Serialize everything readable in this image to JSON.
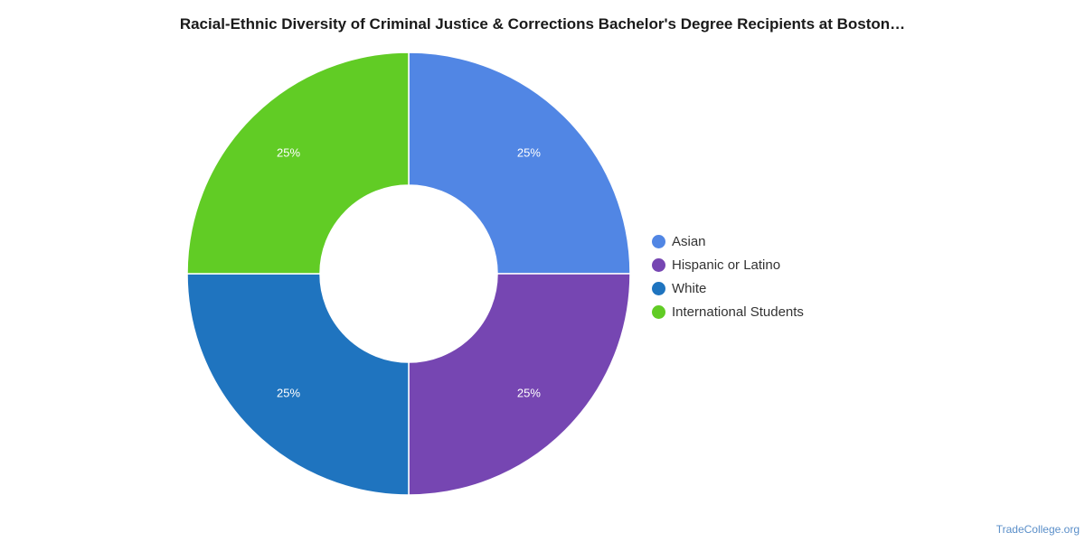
{
  "chart_data": {
    "type": "pie",
    "variant": "donut",
    "title": "Racial-Ethnic Diversity of Criminal Justice & Corrections Bachelor's Degree Recipients at Boston…",
    "categories": [
      "Asian",
      "Hispanic or Latino",
      "White",
      "International Students"
    ],
    "values": [
      25,
      25,
      25,
      25
    ],
    "data_labels": [
      "25%",
      "25%",
      "25%",
      "25%"
    ],
    "colors": [
      "#5186e4",
      "#7646b2",
      "#1f74bf",
      "#61cc25"
    ],
    "legend_position": "right"
  },
  "legend": {
    "items": [
      {
        "label": "Asian",
        "color": "#5186e4"
      },
      {
        "label": "Hispanic or Latino",
        "color": "#7646b2"
      },
      {
        "label": "White",
        "color": "#1f74bf"
      },
      {
        "label": "International Students",
        "color": "#61cc25"
      }
    ]
  },
  "source": "TradeCollege.org"
}
